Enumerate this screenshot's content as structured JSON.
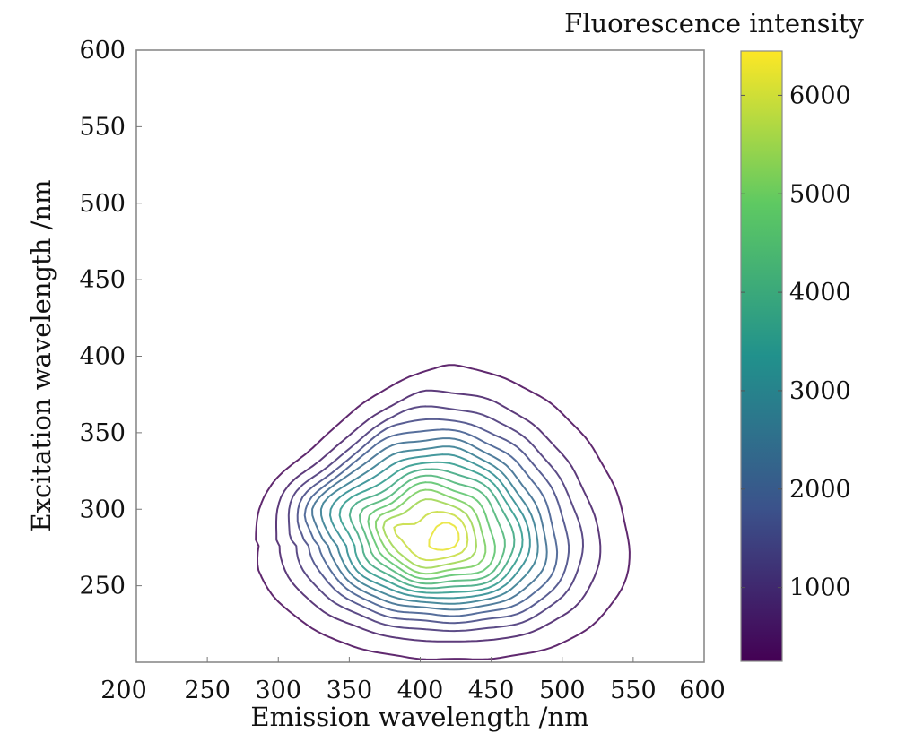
{
  "chart_data": {
    "type": "contour",
    "xlabel": "Emission wavelength /nm",
    "ylabel": "Excitation wavelength /nm",
    "xlim": [
      200,
      600
    ],
    "ylim": [
      200,
      600
    ],
    "xticks": [
      200,
      250,
      300,
      350,
      400,
      450,
      500,
      550,
      600
    ],
    "yticks": [
      250,
      300,
      350,
      400,
      450,
      500,
      550,
      600
    ],
    "colorbar": {
      "title": "Fluorescence intensity",
      "range": [
        250,
        6450
      ],
      "ticks": [
        1000,
        2000,
        3000,
        4000,
        5000,
        6000
      ],
      "colormap": [
        "#440154",
        "#3b528b",
        "#21918c",
        "#5ec962",
        "#fde725"
      ]
    },
    "peak": {
      "emission": 410,
      "excitation": 280,
      "intensity": 6400
    },
    "contour_levels": [
      300,
      700,
      1100,
      1500,
      1900,
      2300,
      2700,
      3100,
      3500,
      3900,
      4300,
      4700,
      5100,
      5500,
      5900,
      6250
    ],
    "grid": false
  }
}
